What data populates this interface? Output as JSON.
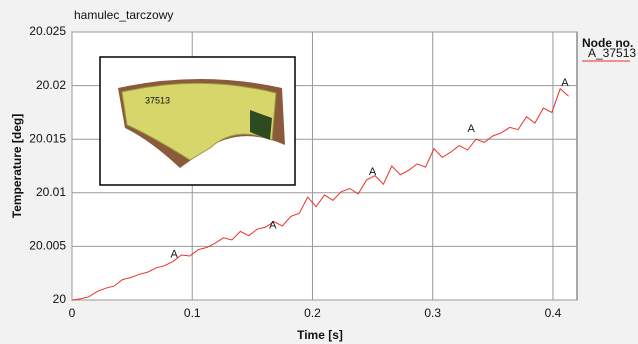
{
  "chart_data": {
    "type": "line",
    "title": "hamulec_tarczowy",
    "x_label": "Time [s]",
    "y_label": "Temperature [deg]",
    "legend_title": "Node no.",
    "inset_label": "37513",
    "xlim": [
      0,
      0.42
    ],
    "xticks": [
      0,
      0.1,
      0.2,
      0.3,
      0.4
    ],
    "ylim": [
      20,
      20.025
    ],
    "yticks": [
      20,
      20.005,
      20.01,
      20.015,
      20.02,
      20.025
    ],
    "grid": true,
    "x": [
      0,
      0.007,
      0.014,
      0.021,
      0.028,
      0.035,
      0.042,
      0.049,
      0.056,
      0.063,
      0.07,
      0.077,
      0.084,
      0.091,
      0.098,
      0.105,
      0.112,
      0.119,
      0.126,
      0.133,
      0.14,
      0.147,
      0.154,
      0.161,
      0.168,
      0.175,
      0.182,
      0.189,
      0.196,
      0.203,
      0.21,
      0.217,
      0.224,
      0.231,
      0.238,
      0.245,
      0.252,
      0.259,
      0.266,
      0.273,
      0.28,
      0.287,
      0.294,
      0.301,
      0.308,
      0.315,
      0.322,
      0.329,
      0.336,
      0.343,
      0.35,
      0.357,
      0.364,
      0.371,
      0.378,
      0.385,
      0.392,
      0.399,
      0.406,
      0.413
    ],
    "series": [
      {
        "name": "A_37513",
        "color": "#e8332a",
        "values": [
          20.0,
          20.0001,
          20.0003,
          20.0008,
          20.0011,
          20.0013,
          20.0019,
          20.0021,
          20.0024,
          20.0026,
          20.003,
          20.0032,
          20.0036,
          20.0042,
          20.0041,
          20.0047,
          20.0049,
          20.0053,
          20.0058,
          20.0056,
          20.0064,
          20.006,
          20.0066,
          20.0068,
          20.0073,
          20.0069,
          20.0078,
          20.0081,
          20.0096,
          20.0087,
          20.0098,
          20.0093,
          20.0101,
          20.0104,
          20.0099,
          20.0112,
          20.0116,
          20.0108,
          20.0125,
          20.0117,
          20.0121,
          20.0127,
          20.0124,
          20.0141,
          20.0133,
          20.0138,
          20.0144,
          20.014,
          20.015,
          20.0147,
          20.0153,
          20.0156,
          20.0161,
          20.0159,
          20.0171,
          20.0165,
          20.0179,
          20.0175,
          20.0197,
          20.019
        ]
      }
    ],
    "annotations": [
      {
        "text": "A",
        "x": 0.085,
        "y": 20.0035
      },
      {
        "text": "A",
        "x": 0.167,
        "y": 20.0062
      },
      {
        "text": "A",
        "x": 0.25,
        "y": 20.0112
      },
      {
        "text": "A",
        "x": 0.332,
        "y": 20.0152
      },
      {
        "text": "A",
        "x": 0.41,
        "y": 20.0195
      }
    ]
  }
}
